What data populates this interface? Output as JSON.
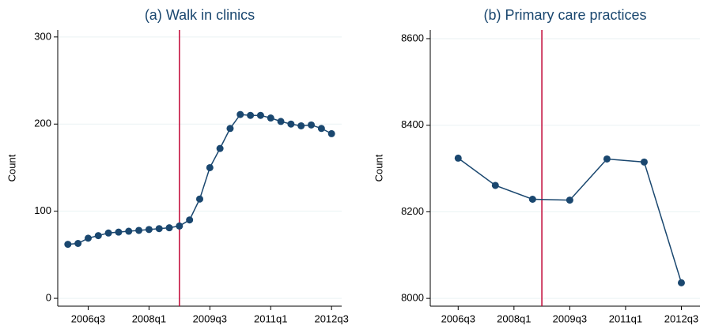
{
  "chart_data": [
    {
      "type": "line",
      "title": "(a) Walk in clinics",
      "y_label": "Count",
      "x": [
        "2006q1",
        "2006q2",
        "2006q3",
        "2006q4",
        "2007q1",
        "2007q2",
        "2007q3",
        "2007q4",
        "2008q1",
        "2008q2",
        "2008q3",
        "2008q4",
        "2009q1",
        "2009q2",
        "2009q3",
        "2009q4",
        "2010q1",
        "2010q2",
        "2010q3",
        "2010q4",
        "2011q1",
        "2011q2",
        "2011q3",
        "2011q4",
        "2012q1",
        "2012q2",
        "2012q3"
      ],
      "values": [
        62,
        63,
        69,
        72,
        75,
        76,
        77,
        78,
        79,
        80,
        81,
        83,
        90,
        114,
        150,
        172,
        195,
        211,
        210,
        210,
        207,
        203,
        200,
        198,
        199,
        195,
        189
      ],
      "color": "#1a476f",
      "vline": "2008q4",
      "vline_color": "#c10534",
      "xlim": [
        "2005q4",
        "2012q4"
      ],
      "xticks": [
        "2006q3",
        "2008q1",
        "2009q3",
        "2011q1",
        "2012q3"
      ],
      "ylim": [
        -9,
        308
      ],
      "yticks": [
        0,
        100,
        200,
        300
      ],
      "grid": true
    },
    {
      "type": "line",
      "title": "(b) Primary care practices",
      "y_label": "Count",
      "x": [
        "2006q3",
        "2007q3",
        "2008q3",
        "2009q3",
        "2010q3",
        "2011q3",
        "2012q3"
      ],
      "values": [
        8324,
        8261,
        8229,
        8227,
        8322,
        8315,
        8036
      ],
      "color": "#1a476f",
      "vline": "2008q4",
      "vline_color": "#c10534",
      "xlim": [
        "2005q4",
        "2013q1"
      ],
      "xticks": [
        "2006q3",
        "2008q1",
        "2009q3",
        "2011q1",
        "2012q3"
      ],
      "ylim": [
        7982,
        8620
      ],
      "yticks": [
        8000,
        8200,
        8400,
        8600
      ],
      "grid": true
    }
  ]
}
